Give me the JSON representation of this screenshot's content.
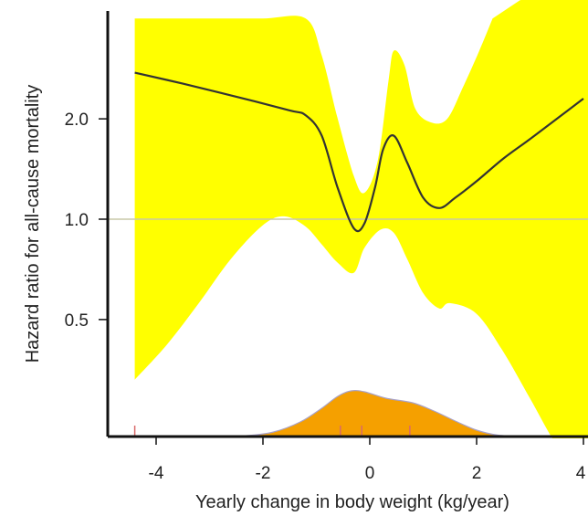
{
  "chart_data": {
    "type": "line",
    "title": "",
    "xlabel": "Yearly change in body weight (kg/year)",
    "ylabel": "Hazard ratio for all-cause mortality",
    "xlim": [
      -4.5,
      4.0
    ],
    "x_ticks": [
      {
        "value": -4,
        "label": "-4"
      },
      {
        "value": -2,
        "label": "-2"
      },
      {
        "value": 0,
        "label": "0"
      },
      {
        "value": 2,
        "label": "2"
      },
      {
        "value": 4,
        "label": "4"
      }
    ],
    "y_ticks": [
      {
        "value": 0.5,
        "label": "0.5"
      },
      {
        "value": 1.0,
        "label": "1.0"
      },
      {
        "value": 2.0,
        "label": "2.0"
      }
    ],
    "y_scale": "log",
    "reference_line": {
      "y": 1.0
    },
    "series": [
      {
        "role": "estimate",
        "x": [
          -4.4,
          -3.5,
          -2.5,
          -1.5,
          -1.2,
          -0.9,
          -0.6,
          -0.3,
          -0.1,
          0.1,
          0.25,
          0.45,
          0.7,
          1.0,
          1.3,
          1.6,
          2.0,
          2.5,
          3.0,
          3.5,
          4.0
        ],
        "y": [
          2.75,
          2.55,
          2.33,
          2.12,
          2.05,
          1.78,
          1.24,
          0.94,
          0.97,
          1.25,
          1.62,
          1.78,
          1.48,
          1.16,
          1.08,
          1.16,
          1.3,
          1.52,
          1.74,
          2.0,
          2.3
        ]
      },
      {
        "role": "ci-upper",
        "x": [
          -4.4,
          -3.0,
          -2.0,
          -1.2,
          -0.9,
          -0.6,
          -0.3,
          -0.1,
          0.15,
          0.35,
          0.45,
          0.65,
          0.85,
          1.15,
          1.45,
          1.75,
          2.05,
          2.3
        ],
        "y": [
          4.0,
          4.0,
          4.0,
          4.0,
          3.1,
          2.0,
          1.35,
          1.2,
          1.5,
          2.6,
          3.2,
          2.9,
          2.15,
          1.95,
          2.0,
          2.5,
          3.2,
          4.0
        ]
      },
      {
        "role": "ci-lower",
        "x": [
          -4.4,
          -3.8,
          -3.2,
          -2.6,
          -2.0,
          -1.6,
          -1.2,
          -0.9,
          -0.6,
          -0.3,
          -0.1,
          0.2,
          0.45,
          0.7,
          1.0,
          1.3,
          1.5,
          2.0,
          2.5,
          3.0,
          3.5,
          4.0
        ],
        "y": [
          0.33,
          0.42,
          0.56,
          0.76,
          0.96,
          1.02,
          0.95,
          0.84,
          0.74,
          0.69,
          0.82,
          0.93,
          0.91,
          0.76,
          0.6,
          0.54,
          0.56,
          0.52,
          0.4,
          0.29,
          0.21,
          0.17
        ]
      }
    ],
    "density": {
      "x": [
        -2.9,
        -2.3,
        -1.8,
        -1.3,
        -0.9,
        -0.6,
        -0.35,
        -0.1,
        0.3,
        0.8,
        1.2,
        1.6,
        2.0,
        2.4,
        2.9
      ],
      "y": [
        0.0,
        0.02,
        0.1,
        0.32,
        0.62,
        0.88,
        1.0,
        0.98,
        0.84,
        0.74,
        0.56,
        0.34,
        0.14,
        0.03,
        0.0
      ]
    },
    "rug_x": [
      -4.4,
      -0.55,
      -0.15,
      0.75
    ],
    "colors": {
      "ci_fill": "#ffff00",
      "estimate_line": "#333333",
      "reference_line": "#c8c8a8",
      "density_fill": "#f5a000",
      "density_outline": "#a9a2c7",
      "rug": "#d96a6a",
      "axis": "#111111"
    },
    "grid": false
  }
}
